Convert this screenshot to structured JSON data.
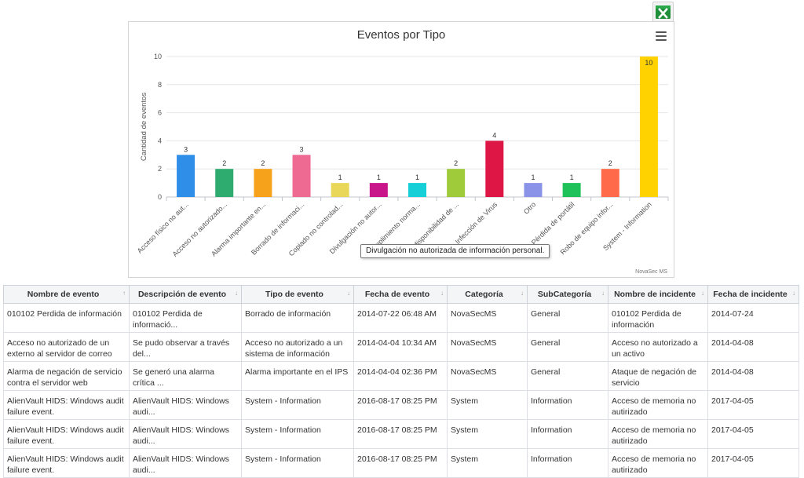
{
  "export": {
    "icon": "excel-icon"
  },
  "chart": {
    "menu_icon": "hamburger-menu-icon",
    "credit": "NovaSec MS",
    "tooltip": "Divulgación no autorizada de información personal."
  },
  "chart_data": {
    "type": "bar",
    "title": "Eventos por Tipo",
    "xlabel": "",
    "ylabel": "Cantidad de eventos",
    "ylim": [
      0,
      10
    ],
    "yticks": [
      0,
      2,
      4,
      6,
      8,
      10
    ],
    "grid": true,
    "categories": [
      "Acceso físico no aut...",
      "Acceso no autorizado...",
      "Alarma importante en...",
      "Borrado de informaci...",
      "Copiado no controlad...",
      "Divulgación no autor...",
      "Incumplimiento norma...",
      "Indisponibilidad de ...",
      "Infección de Virus",
      "Otro",
      "Pérdida de portátil",
      "Robo de equipo infor...",
      "System - Information"
    ],
    "values": [
      3,
      2,
      2,
      3,
      1,
      1,
      1,
      2,
      4,
      1,
      1,
      2,
      10
    ],
    "colors": [
      "#2f8fe8",
      "#2eab6e",
      "#f7a21b",
      "#ee6a93",
      "#e9d75a",
      "#c8168a",
      "#17cfd6",
      "#9fcb3a",
      "#dd1645",
      "#8a93e8",
      "#1fc159",
      "#ff6b4a",
      "#ffd200"
    ]
  },
  "table": {
    "columns": [
      {
        "label": "Nombre de evento",
        "sort": "↑"
      },
      {
        "label": "Descripción de evento",
        "sort": "↓"
      },
      {
        "label": "Tipo de evento",
        "sort": "↓"
      },
      {
        "label": "Fecha de evento",
        "sort": "↓"
      },
      {
        "label": "Categoría",
        "sort": "↓"
      },
      {
        "label": "SubCategoría",
        "sort": "↓"
      },
      {
        "label": "Nombre de incidente",
        "sort": "↓"
      },
      {
        "label": "Fecha de incidente",
        "sort": "↓"
      }
    ],
    "rows": [
      [
        "010102 Perdida de información",
        "010102 Perdida de informació...",
        "Borrado de información",
        "2014-07-22 06:48 AM",
        "NovaSecMS",
        "General",
        "010102 Perdida de información",
        "2014-07-24"
      ],
      [
        "Acceso no autorizado de un externo al servidor de correo",
        "Se pudo observar a través del...",
        "Acceso no autorizado a un sistema de información",
        "2014-04-04 10:34 AM",
        "NovaSecMS",
        "General",
        "Acceso no autorizado a un activo",
        "2014-04-08"
      ],
      [
        "Alarma de negación de servicio contra el servidor web",
        "Se generó una alarma crítica ...",
        "Alarma importante en el IPS",
        "2014-04-04 02:36 PM",
        "NovaSecMS",
        "General",
        "Ataque de negación de servicio",
        "2014-04-08"
      ],
      [
        "AlienVault HIDS: Windows audit failure event.",
        "AlienVault HIDS: Windows audi...",
        "System - Information",
        "2016-08-17 08:25 PM",
        "System",
        "Information",
        "Acceso de memoria no autirizado",
        "2017-04-05"
      ],
      [
        "AlienVault HIDS: Windows audit failure event.",
        "AlienVault HIDS: Windows audi...",
        "System - Information",
        "2016-08-17 08:25 PM",
        "System",
        "Information",
        "Acceso de memoria no autirizado",
        "2017-04-05"
      ],
      [
        "AlienVault HIDS: Windows audit failure event.",
        "AlienVault HIDS: Windows audi...",
        "System - Information",
        "2016-08-17 08:25 PM",
        "System",
        "Information",
        "Acceso de memoria no autirizado",
        "2017-04-05"
      ]
    ]
  }
}
